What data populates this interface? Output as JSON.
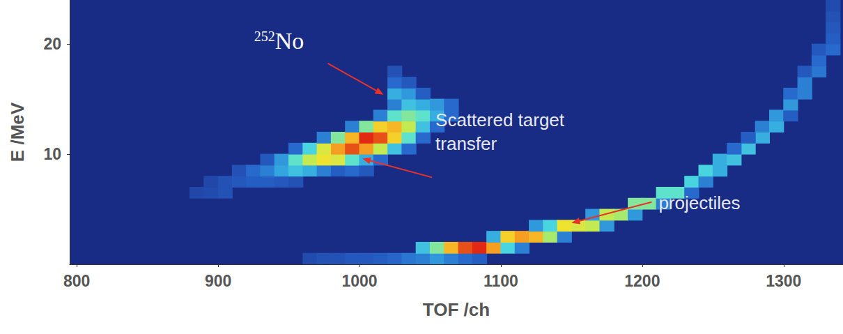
{
  "chart_data": {
    "type": "heatmap",
    "x_label": "TOF /ch",
    "y_label": "E /MeV",
    "xlim": [
      795,
      1342
    ],
    "xticks": [
      800,
      900,
      1000,
      1100,
      1200,
      1300
    ],
    "ylim": [
      0,
      24
    ],
    "yticks": [
      10,
      20
    ],
    "grid": false,
    "cell_size": [
      10,
      1
    ],
    "color_range": [
      0,
      100
    ],
    "cells": [
      [
        960,
        0,
        6
      ],
      [
        970,
        0,
        8
      ],
      [
        980,
        0,
        8
      ],
      [
        990,
        0,
        10
      ],
      [
        1000,
        0,
        10
      ],
      [
        1010,
        0,
        12
      ],
      [
        1020,
        0,
        14
      ],
      [
        1030,
        0,
        18
      ],
      [
        1040,
        0,
        20
      ],
      [
        1050,
        0,
        25
      ],
      [
        1060,
        0,
        20
      ],
      [
        1070,
        0,
        15
      ],
      [
        1080,
        0,
        12
      ],
      [
        1040,
        1,
        35
      ],
      [
        1050,
        1,
        50
      ],
      [
        1060,
        1,
        80
      ],
      [
        1070,
        1,
        95
      ],
      [
        1080,
        1,
        100
      ],
      [
        1090,
        1,
        85
      ],
      [
        1100,
        1,
        40
      ],
      [
        1110,
        1,
        20
      ],
      [
        1090,
        2,
        30
      ],
      [
        1100,
        2,
        75
      ],
      [
        1110,
        2,
        85
      ],
      [
        1120,
        2,
        80
      ],
      [
        1130,
        2,
        55
      ],
      [
        1140,
        2,
        20
      ],
      [
        1120,
        3,
        25
      ],
      [
        1130,
        3,
        40
      ],
      [
        1140,
        3,
        70
      ],
      [
        1150,
        3,
        65
      ],
      [
        1160,
        3,
        60
      ],
      [
        1170,
        3,
        25
      ],
      [
        1160,
        4,
        25
      ],
      [
        1170,
        4,
        60
      ],
      [
        1180,
        4,
        55
      ],
      [
        1190,
        4,
        25
      ],
      [
        1190,
        5,
        50
      ],
      [
        1200,
        5,
        50
      ],
      [
        1210,
        5,
        20
      ],
      [
        1210,
        6,
        45
      ],
      [
        1220,
        6,
        45
      ],
      [
        1230,
        6,
        15
      ],
      [
        1230,
        7,
        40
      ],
      [
        1240,
        7,
        20
      ],
      [
        1240,
        8,
        40
      ],
      [
        1250,
        8,
        30
      ],
      [
        1250,
        9,
        30
      ],
      [
        1260,
        9,
        35
      ],
      [
        1270,
        10,
        35
      ],
      [
        1260,
        10,
        15
      ],
      [
        1280,
        11,
        30
      ],
      [
        1270,
        11,
        12
      ],
      [
        1280,
        12,
        20
      ],
      [
        1290,
        12,
        30
      ],
      [
        1290,
        13,
        25
      ],
      [
        1300,
        13,
        12
      ],
      [
        1300,
        14,
        25
      ],
      [
        1300,
        15,
        15
      ],
      [
        1310,
        15,
        20
      ],
      [
        1310,
        16,
        20
      ],
      [
        1310,
        17,
        10
      ],
      [
        1320,
        17,
        18
      ],
      [
        1320,
        18,
        15
      ],
      [
        1320,
        19,
        10
      ],
      [
        1330,
        19,
        15
      ],
      [
        1330,
        20,
        12
      ],
      [
        1330,
        21,
        10
      ],
      [
        1330,
        22,
        8
      ],
      [
        1330,
        23,
        6
      ],
      [
        880,
        6,
        5
      ],
      [
        890,
        6,
        6
      ],
      [
        890,
        7,
        5
      ],
      [
        900,
        6,
        8
      ],
      [
        900,
        7,
        8
      ],
      [
        910,
        7,
        10
      ],
      [
        910,
        8,
        8
      ],
      [
        920,
        7,
        12
      ],
      [
        920,
        8,
        15
      ],
      [
        930,
        7,
        12
      ],
      [
        930,
        8,
        20
      ],
      [
        930,
        9,
        10
      ],
      [
        940,
        7,
        10
      ],
      [
        940,
        8,
        28
      ],
      [
        940,
        9,
        25
      ],
      [
        950,
        7,
        8
      ],
      [
        950,
        8,
        35
      ],
      [
        950,
        9,
        45
      ],
      [
        950,
        10,
        15
      ],
      [
        960,
        8,
        30
      ],
      [
        960,
        9,
        60
      ],
      [
        960,
        10,
        40
      ],
      [
        970,
        8,
        20
      ],
      [
        970,
        9,
        70
      ],
      [
        970,
        10,
        65
      ],
      [
        970,
        11,
        20
      ],
      [
        980,
        8,
        12
      ],
      [
        980,
        9,
        65
      ],
      [
        980,
        10,
        85
      ],
      [
        980,
        11,
        50
      ],
      [
        990,
        8,
        15
      ],
      [
        990,
        9,
        45
      ],
      [
        990,
        10,
        95
      ],
      [
        990,
        11,
        80
      ],
      [
        990,
        12,
        20
      ],
      [
        1000,
        8,
        10
      ],
      [
        1000,
        9,
        30
      ],
      [
        1000,
        10,
        85
      ],
      [
        1000,
        11,
        100
      ],
      [
        1000,
        12,
        50
      ],
      [
        1010,
        9,
        15
      ],
      [
        1010,
        10,
        60
      ],
      [
        1010,
        11,
        95
      ],
      [
        1010,
        12,
        75
      ],
      [
        1010,
        13,
        20
      ],
      [
        1020,
        10,
        35
      ],
      [
        1020,
        11,
        75
      ],
      [
        1020,
        12,
        80
      ],
      [
        1020,
        13,
        45
      ],
      [
        1020,
        14,
        20
      ],
      [
        1020,
        15,
        30
      ],
      [
        1020,
        16,
        15
      ],
      [
        1020,
        17,
        8
      ],
      [
        1030,
        10,
        15
      ],
      [
        1030,
        11,
        45
      ],
      [
        1030,
        12,
        60
      ],
      [
        1030,
        13,
        50
      ],
      [
        1030,
        14,
        35
      ],
      [
        1030,
        15,
        25
      ],
      [
        1030,
        16,
        10
      ],
      [
        1040,
        11,
        15
      ],
      [
        1040,
        12,
        35
      ],
      [
        1040,
        13,
        45
      ],
      [
        1040,
        14,
        30
      ],
      [
        1040,
        15,
        12
      ],
      [
        1050,
        12,
        15
      ],
      [
        1050,
        13,
        30
      ],
      [
        1050,
        14,
        25
      ],
      [
        1060,
        13,
        15
      ],
      [
        1060,
        14,
        15
      ]
    ],
    "annotations": [
      {
        "text": "No",
        "superscript": "252",
        "point": [
          1017,
          15.4
        ]
      },
      {
        "text": "Scattered target transfer",
        "point": [
          1002,
          9.6
        ]
      },
      {
        "text": "projectiles",
        "point": [
          1150,
          3.75
        ]
      }
    ]
  }
}
